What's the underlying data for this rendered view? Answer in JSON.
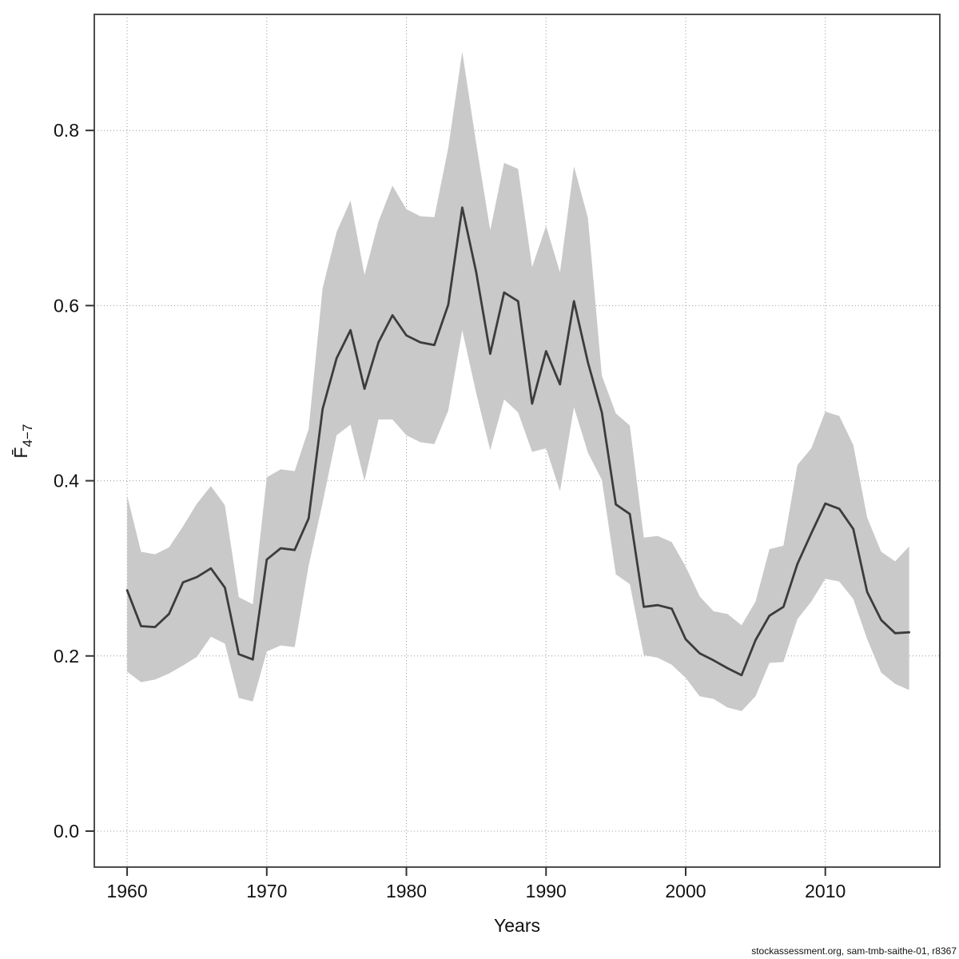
{
  "footer": {
    "text": "stockassessment.org, sam-tmb-saithe-01, r8367"
  },
  "chart_data": {
    "type": "line",
    "title": "",
    "xlabel": "Years",
    "ylabel_base": "F̄",
    "ylabel_sub": "4−7",
    "legend": null,
    "grid": "dotted",
    "xlim": [
      1957.65,
      2018.2
    ],
    "ylim": [
      -0.0411,
      0.9325
    ],
    "x_ticks": [
      1960,
      1970,
      1980,
      1990,
      2000,
      2010
    ],
    "y_ticks": [
      0.0,
      0.2,
      0.4,
      0.6,
      0.8
    ],
    "colors": {
      "line": "#3c3c3c",
      "band": "#c9c9c9",
      "grid": "#999999",
      "frame": "#4d4d4d",
      "tick": "#333333"
    },
    "series": [
      {
        "name": "Fbar(4-7) estimate",
        "role": "line"
      },
      {
        "name": "95% confidence band",
        "role": "band"
      }
    ],
    "years": [
      1960,
      1961,
      1962,
      1963,
      1964,
      1965,
      1966,
      1967,
      1968,
      1969,
      1970,
      1971,
      1972,
      1973,
      1974,
      1975,
      1976,
      1977,
      1978,
      1979,
      1980,
      1981,
      1982,
      1983,
      1984,
      1985,
      1986,
      1987,
      1988,
      1989,
      1990,
      1991,
      1992,
      1993,
      1994,
      1995,
      1996,
      1997,
      1998,
      1999,
      2000,
      2001,
      2002,
      2003,
      2004,
      2005,
      2006,
      2007,
      2008,
      2009,
      2010,
      2011,
      2012,
      2013,
      2014,
      2015,
      2016
    ],
    "fbar": [
      0.275,
      0.234,
      0.233,
      0.248,
      0.284,
      0.29,
      0.3,
      0.278,
      0.202,
      0.196,
      0.31,
      0.323,
      0.321,
      0.357,
      0.482,
      0.54,
      0.572,
      0.505,
      0.558,
      0.589,
      0.566,
      0.558,
      0.555,
      0.601,
      0.712,
      0.638,
      0.545,
      0.615,
      0.605,
      0.488,
      0.548,
      0.51,
      0.605,
      0.535,
      0.478,
      0.373,
      0.362,
      0.256,
      0.258,
      0.254,
      0.219,
      0.203,
      0.195,
      0.186,
      0.178,
      0.218,
      0.246,
      0.256,
      0.305,
      0.34,
      0.374,
      0.368,
      0.345,
      0.273,
      0.241,
      0.226,
      0.227
    ],
    "ci_upper": [
      0.383,
      0.319,
      0.316,
      0.324,
      0.348,
      0.374,
      0.394,
      0.372,
      0.267,
      0.259,
      0.404,
      0.413,
      0.411,
      0.459,
      0.62,
      0.684,
      0.72,
      0.635,
      0.696,
      0.737,
      0.71,
      0.702,
      0.701,
      0.78,
      0.89,
      0.785,
      0.686,
      0.763,
      0.756,
      0.644,
      0.691,
      0.638,
      0.759,
      0.7,
      0.52,
      0.477,
      0.463,
      0.335,
      0.337,
      0.33,
      0.302,
      0.268,
      0.251,
      0.248,
      0.235,
      0.262,
      0.322,
      0.326,
      0.418,
      0.437,
      0.479,
      0.474,
      0.441,
      0.358,
      0.319,
      0.308,
      0.325
    ],
    "ci_lower": [
      0.182,
      0.17,
      0.173,
      0.18,
      0.189,
      0.199,
      0.222,
      0.214,
      0.152,
      0.148,
      0.205,
      0.212,
      0.21,
      0.303,
      0.375,
      0.452,
      0.464,
      0.4,
      0.47,
      0.47,
      0.452,
      0.444,
      0.442,
      0.48,
      0.572,
      0.5,
      0.435,
      0.493,
      0.478,
      0.433,
      0.437,
      0.388,
      0.484,
      0.432,
      0.401,
      0.293,
      0.282,
      0.201,
      0.198,
      0.19,
      0.175,
      0.154,
      0.151,
      0.141,
      0.137,
      0.154,
      0.192,
      0.193,
      0.242,
      0.262,
      0.288,
      0.285,
      0.265,
      0.219,
      0.181,
      0.168,
      0.161
    ]
  }
}
